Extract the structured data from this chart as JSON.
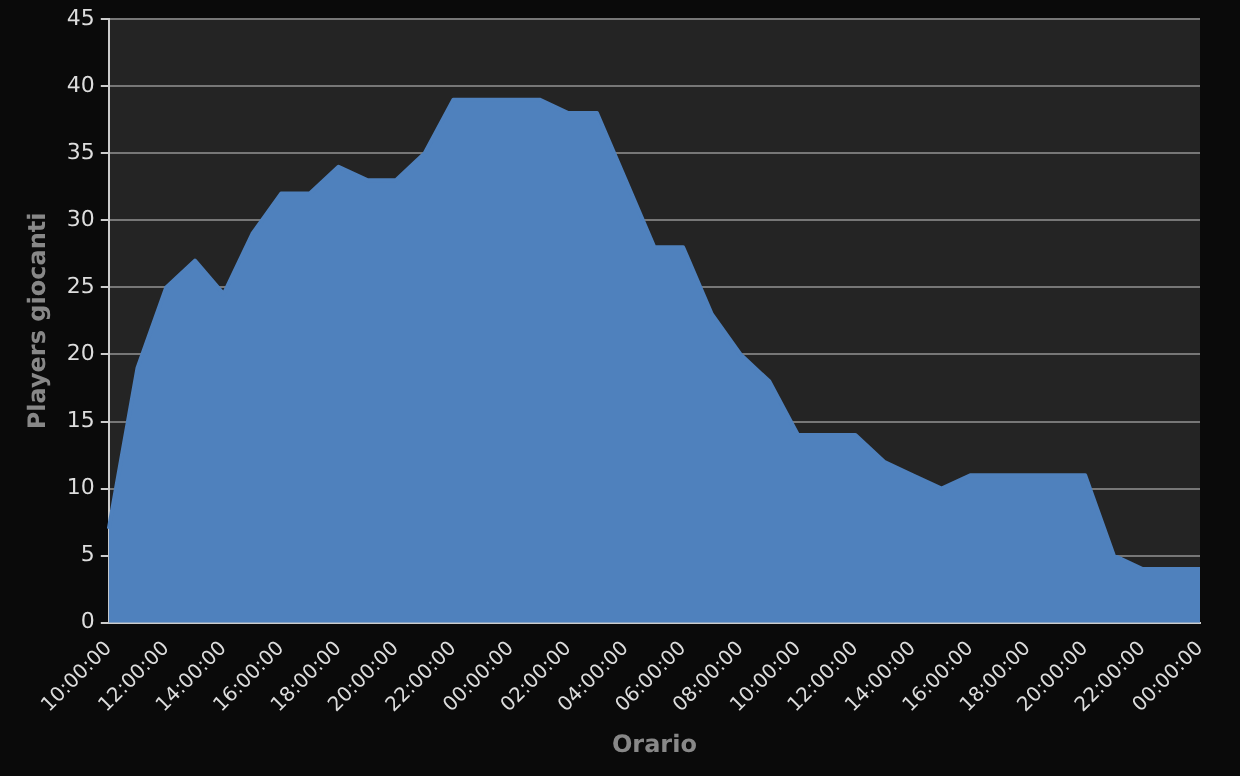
{
  "chart_data": {
    "type": "area",
    "xlabel": "Orario",
    "ylabel": "Players giocanti",
    "categories": [
      "10:00:00",
      null,
      "12:00:00",
      null,
      "14:00:00",
      null,
      "16:00:00",
      null,
      "18:00:00",
      null,
      "20:00:00",
      null,
      "22:00:00",
      null,
      "00:00:00",
      null,
      "02:00:00",
      null,
      "04:00:00",
      null,
      "06:00:00",
      null,
      "08:00:00",
      null,
      "10:00:00",
      null,
      "12:00:00",
      null,
      "14:00:00",
      null,
      "16:00:00",
      null,
      "18:00:00",
      null,
      "20:00:00",
      null,
      "22:00:00",
      null,
      "00:00:00"
    ],
    "series": [
      {
        "color": "#4f81bd",
        "values": [
          7,
          19,
          25,
          27,
          24.5,
          29,
          32,
          32,
          34,
          33,
          33,
          35,
          39,
          39,
          39,
          39,
          38,
          38,
          33,
          28,
          28,
          23,
          20,
          18,
          14,
          14,
          14,
          12,
          11,
          10,
          11,
          11,
          11,
          11,
          11,
          5,
          4,
          4,
          4
        ]
      }
    ],
    "ylim": [
      0,
      45
    ],
    "yticks": [
      0,
      5,
      10,
      15,
      20,
      25,
      30,
      35,
      40,
      45
    ],
    "grid": "y",
    "legend": false
  }
}
